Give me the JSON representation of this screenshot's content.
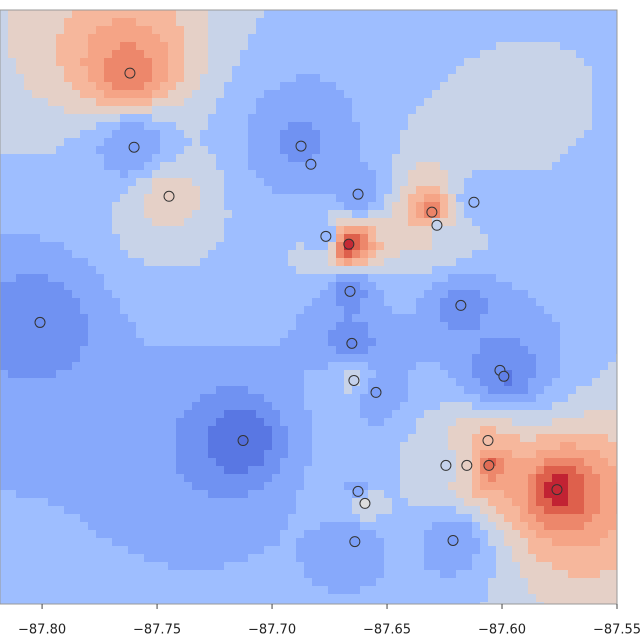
{
  "chart_data": {
    "type": "contour",
    "x": [
      -87.7618,
      -87.76,
      -87.7448,
      -87.8009,
      -87.6874,
      -87.6831,
      -87.6626,
      -87.6766,
      -87.6666,
      -87.6305,
      -87.6283,
      -87.6122,
      -87.6661,
      -87.6179,
      -87.6653,
      -87.6644,
      -87.6548,
      -87.6009,
      -87.5992,
      -87.7126,
      -87.6061,
      -87.6244,
      -87.6153,
      -87.6057,
      -87.5761,
      -87.6626,
      -87.6596,
      -87.664,
      -87.6213
    ],
    "y": [
      41.8706,
      41.8384,
      41.8171,
      41.7623,
      41.8389,
      41.831,
      41.818,
      41.7997,
      41.7963,
      41.8102,
      41.8045,
      41.8145,
      41.7758,
      41.7697,
      41.7532,
      41.7371,
      41.7319,
      41.7415,
      41.7389,
      41.711,
      41.711,
      41.7002,
      41.7002,
      41.7002,
      41.6897,
      41.6889,
      41.6837,
      41.6671,
      41.6676
    ],
    "values": [
      0.8,
      0.25,
      0.55,
      0.2,
      0.22,
      0.25,
      0.25,
      0.35,
      0.95,
      0.8,
      0.45,
      0.35,
      0.2,
      0.2,
      0.18,
      0.45,
      0.25,
      0.2,
      0.15,
      0.1,
      0.6,
      0.45,
      0.55,
      0.85,
      0.95,
      0.3,
      0.5,
      0.25,
      0.25
    ],
    "colormap": "coolwarm",
    "clim": [
      0,
      1
    ],
    "levels": 12,
    "xlim": [
      -87.8183,
      -87.55
    ],
    "ylim": [
      41.64,
      41.898
    ],
    "xticks": [
      {
        "value": -87.8,
        "label": "−87.80"
      },
      {
        "value": -87.75,
        "label": "−87.75"
      },
      {
        "value": -87.7,
        "label": "−87.70"
      },
      {
        "value": -87.65,
        "label": "−87.65"
      },
      {
        "value": -87.6,
        "label": "−87.60"
      },
      {
        "value": -87.55,
        "label": "−87.55"
      }
    ]
  }
}
